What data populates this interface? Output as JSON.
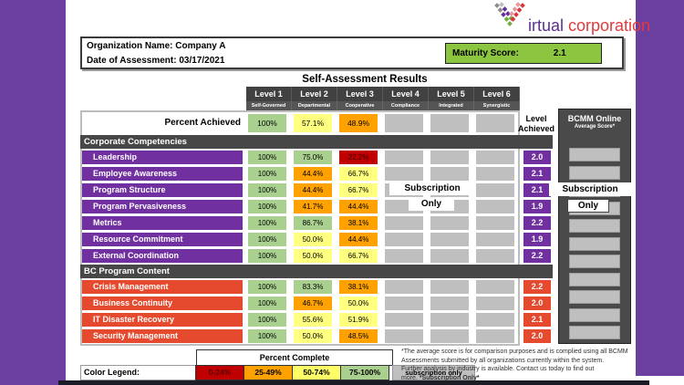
{
  "brand": {
    "name_part1": "irtual",
    "name_part2": "corporation"
  },
  "org": {
    "name_label": "Organization Name:",
    "name_value": "Company A",
    "date_label": "Date of Assessment:",
    "date_value": "03/17/2021",
    "maturity_label": "Maturity Score:",
    "maturity_value": "2.1",
    "maturity_bg": "#8CC540"
  },
  "title": "Self-Assessment Results",
  "levels": [
    {
      "name": "Level 1",
      "subtitle": "Self-Governed"
    },
    {
      "name": "Level 2",
      "subtitle": "Departmental"
    },
    {
      "name": "Level 3",
      "subtitle": "Cooperative"
    },
    {
      "name": "Level 4",
      "subtitle": "Compliance"
    },
    {
      "name": "Level 5",
      "subtitle": "Integrated"
    },
    {
      "name": "Level 6",
      "subtitle": "Synergistic"
    }
  ],
  "percent_achieved": {
    "label": "Percent Achieved",
    "cells": [
      {
        "t": "100%",
        "c": "#A9D08E"
      },
      {
        "t": "57.1%",
        "c": "#FFFF80"
      },
      {
        "t": "48.9%",
        "c": "#FFA200"
      },
      {
        "t": "",
        "c": "#BFBFBF"
      },
      {
        "t": "",
        "c": "#BFBFBF"
      },
      {
        "t": "",
        "c": "#BFBFBF"
      }
    ]
  },
  "level_achieved": {
    "line1": "Level",
    "line2": "Achieved"
  },
  "table": {
    "sections": [
      {
        "header": "Corporate Competencies",
        "label_bg": "#7030A0",
        "score_bg": "#7030A0",
        "rows": [
          {
            "label": "Leadership",
            "score": "2.0",
            "cells": [
              {
                "t": "100%",
                "c": "#A9D08E"
              },
              {
                "t": "75.0%",
                "c": "#A9D08E"
              },
              {
                "t": "22.2%",
                "c": "#C00000",
                "tc": "#3d0000"
              },
              {
                "t": "",
                "c": "#BFBFBF"
              },
              {
                "t": "",
                "c": "#BFBFBF"
              },
              {
                "t": "",
                "c": "#BFBFBF"
              }
            ]
          },
          {
            "label": "Employee Awareness",
            "score": "2.1",
            "cells": [
              {
                "t": "100%",
                "c": "#A9D08E"
              },
              {
                "t": "44.4%",
                "c": "#FFA200"
              },
              {
                "t": "66.7%",
                "c": "#FFFF80"
              },
              {
                "t": "",
                "c": "#BFBFBF"
              },
              {
                "t": "",
                "c": "#BFBFBF"
              },
              {
                "t": "",
                "c": "#BFBFBF"
              }
            ]
          },
          {
            "label": "Program Structure",
            "score": "2.1",
            "cells": [
              {
                "t": "100%",
                "c": "#A9D08E"
              },
              {
                "t": "44.4%",
                "c": "#FFA200"
              },
              {
                "t": "66.7%",
                "c": "#FFFF80"
              },
              {
                "t": "",
                "c": "#BFBFBF"
              },
              {
                "t": "",
                "c": "#BFBFBF"
              },
              {
                "t": "",
                "c": "#BFBFBF"
              }
            ]
          },
          {
            "label": "Program Pervasiveness",
            "score": "1.9",
            "cells": [
              {
                "t": "100%",
                "c": "#A9D08E"
              },
              {
                "t": "41.7%",
                "c": "#FFA200"
              },
              {
                "t": "44.4%",
                "c": "#FFA200"
              },
              {
                "t": "",
                "c": "#BFBFBF"
              },
              {
                "t": "",
                "c": "#BFBFBF"
              },
              {
                "t": "",
                "c": "#BFBFBF"
              }
            ]
          },
          {
            "label": "Metrics",
            "score": "2.2",
            "cells": [
              {
                "t": "100%",
                "c": "#A9D08E"
              },
              {
                "t": "86.7%",
                "c": "#A9D08E"
              },
              {
                "t": "38.1%",
                "c": "#FFA200"
              },
              {
                "t": "",
                "c": "#BFBFBF"
              },
              {
                "t": "",
                "c": "#BFBFBF"
              },
              {
                "t": "",
                "c": "#BFBFBF"
              }
            ]
          },
          {
            "label": "Resource Commitment",
            "score": "1.9",
            "cells": [
              {
                "t": "100%",
                "c": "#A9D08E"
              },
              {
                "t": "50.0%",
                "c": "#FFFF80"
              },
              {
                "t": "44.4%",
                "c": "#FFA200"
              },
              {
                "t": "",
                "c": "#BFBFBF"
              },
              {
                "t": "",
                "c": "#BFBFBF"
              },
              {
                "t": "",
                "c": "#BFBFBF"
              }
            ]
          },
          {
            "label": "External Coordination",
            "score": "2.2",
            "cells": [
              {
                "t": "100%",
                "c": "#A9D08E"
              },
              {
                "t": "50.0%",
                "c": "#FFFF80"
              },
              {
                "t": "66.7%",
                "c": "#FFFF80"
              },
              {
                "t": "",
                "c": "#BFBFBF"
              },
              {
                "t": "",
                "c": "#BFBFBF"
              },
              {
                "t": "",
                "c": "#BFBFBF"
              }
            ]
          }
        ]
      },
      {
        "header": "BC Program Content",
        "label_bg": "#E64A2E",
        "score_bg": "#E64A2E",
        "rows": [
          {
            "label": "Crisis Management",
            "score": "2.2",
            "cells": [
              {
                "t": "100%",
                "c": "#A9D08E"
              },
              {
                "t": "83.3%",
                "c": "#A9D08E"
              },
              {
                "t": "38.1%",
                "c": "#FFA200"
              },
              {
                "t": "",
                "c": "#BFBFBF"
              },
              {
                "t": "",
                "c": "#BFBFBF"
              },
              {
                "t": "",
                "c": "#BFBFBF"
              }
            ]
          },
          {
            "label": "Business Continuity",
            "score": "2.0",
            "cells": [
              {
                "t": "100%",
                "c": "#A9D08E"
              },
              {
                "t": "46.7%",
                "c": "#FFA200"
              },
              {
                "t": "50.0%",
                "c": "#FFFF80"
              },
              {
                "t": "",
                "c": "#BFBFBF"
              },
              {
                "t": "",
                "c": "#BFBFBF"
              },
              {
                "t": "",
                "c": "#BFBFBF"
              }
            ]
          },
          {
            "label": "IT Disaster Recovery",
            "score": "2.1",
            "cells": [
              {
                "t": "100%",
                "c": "#A9D08E"
              },
              {
                "t": "55.6%",
                "c": "#FFFF80"
              },
              {
                "t": "51.9%",
                "c": "#FFFF80"
              },
              {
                "t": "",
                "c": "#BFBFBF"
              },
              {
                "t": "",
                "c": "#BFBFBF"
              },
              {
                "t": "",
                "c": "#BFBFBF"
              }
            ]
          },
          {
            "label": "Security Management",
            "score": "2.0",
            "cells": [
              {
                "t": "100%",
                "c": "#A9D08E"
              },
              {
                "t": "50.0%",
                "c": "#FFFF80"
              },
              {
                "t": "48.5%",
                "c": "#FFA200"
              },
              {
                "t": "",
                "c": "#BFBFBF"
              },
              {
                "t": "",
                "c": "#BFBFBF"
              },
              {
                "t": "",
                "c": "#BFBFBF"
              }
            ]
          }
        ]
      }
    ]
  },
  "overlays": {
    "subscription": "Subscription",
    "only": "Only"
  },
  "bcmm": {
    "title": "BCMM Online",
    "subtitle": "Average Score*",
    "cell_count": 11
  },
  "legend": {
    "header": "Percent Complete",
    "label": "Color Legend:",
    "cells": [
      {
        "t": "0-24%",
        "c": "#C00000",
        "tc": "#5a0000"
      },
      {
        "t": "25-49%",
        "c": "#FFA200",
        "tc": "#000000"
      },
      {
        "t": "50-74%",
        "c": "#FFFF66",
        "tc": "#000000"
      },
      {
        "t": "75-100%",
        "c": "#A9D08E",
        "tc": "#000000"
      }
    ],
    "subscription_label": "subscription only"
  },
  "footnote": {
    "line1": "*The average score is for comparison purposes and is complied using all BCMM",
    "line2": "Assessments submitted by all organizations currently within the system.",
    "line3": "Further analysis by industry is available. Contact us today to find out",
    "line4": "more. ",
    "line4_bold": "*Subscription Only*"
  }
}
